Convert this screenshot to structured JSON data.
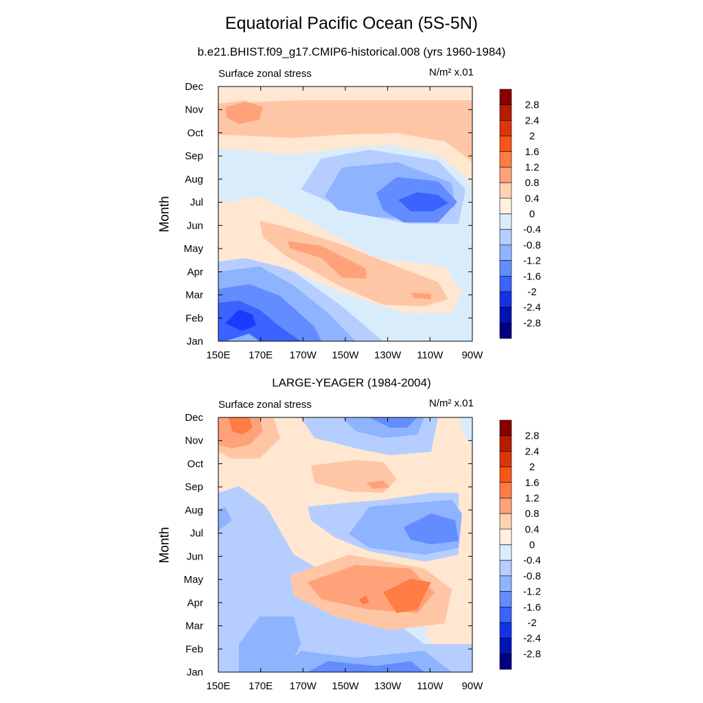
{
  "figure": {
    "title": "Equatorial Pacific Ocean (5S-5N)"
  },
  "chart_data": [
    {
      "type": "heatmap",
      "title": "b.e21.BHIST.f09_g17.CMIP6-historical.008 (yrs 1960-1984)",
      "left_label": "Surface zonal stress",
      "units": "N/m² x.01",
      "ylabel": "Month",
      "xlabel": "",
      "x_ticks": [
        "150E",
        "170E",
        "170W",
        "150W",
        "130W",
        "110W",
        "90W"
      ],
      "y_ticks": [
        "Jan",
        "Feb",
        "Mar",
        "Apr",
        "May",
        "Jun",
        "Jul",
        "Aug",
        "Sep",
        "Oct",
        "Nov",
        "Dec"
      ],
      "colorbar_levels": [
        "2.8",
        "2.4",
        "2",
        "1.6",
        "1.2",
        "0.8",
        "0.4",
        "0",
        "-0.4",
        "-0.8",
        "-1.2",
        "-1.6",
        "-2",
        "-2.4",
        "-2.8"
      ],
      "grid": false,
      "contour_features": [
        {
          "month": "Feb",
          "lon": "170E-150E",
          "value": -2.0
        },
        {
          "month": "Jan",
          "lon": "150E-170W",
          "value": -1.6
        },
        {
          "month": "Jul",
          "lon": "130W-110W",
          "value": -2.0
        },
        {
          "month": "Jul",
          "lon": "150W-100W",
          "value": -1.2
        },
        {
          "month": "Apr",
          "lon": "150W-140W",
          "value": 1.6
        },
        {
          "month": "Mar",
          "lon": "120W-110W",
          "value": 1.6
        },
        {
          "month": "Apr",
          "lon": "170E-100W",
          "value": 0.8
        },
        {
          "month": "Nov",
          "lon": "150E-170E",
          "value": 0.8
        },
        {
          "month": "Oct",
          "lon": "170E-90W",
          "value": 0.4
        }
      ]
    },
    {
      "type": "heatmap",
      "title": "LARGE-YEAGER (1984-2004)",
      "left_label": "Surface zonal stress",
      "units": "N/m² x.01",
      "ylabel": "Month",
      "xlabel": "",
      "x_ticks": [
        "150E",
        "170E",
        "170W",
        "150W",
        "130W",
        "110W",
        "90W"
      ],
      "y_ticks": [
        "Jan",
        "Feb",
        "Mar",
        "Apr",
        "May",
        "Jun",
        "Jul",
        "Aug",
        "Sep",
        "Oct",
        "Nov",
        "Dec"
      ],
      "colorbar_levels": [
        "2.8",
        "2.4",
        "2",
        "1.6",
        "1.2",
        "0.8",
        "0.4",
        "0",
        "-0.4",
        "-0.8",
        "-1.2",
        "-1.6",
        "-2",
        "-2.4",
        "-2.8"
      ],
      "grid": false,
      "contour_features": [
        {
          "month": "Dec",
          "lon": "150E-160E",
          "value": 1.6
        },
        {
          "month": "Nov",
          "lon": "150E-160E",
          "value": 1.2
        },
        {
          "month": "Apr",
          "lon": "130W-120W",
          "value": 1.2
        },
        {
          "month": "Apr",
          "lon": "170W-100W",
          "value": 0.8
        },
        {
          "month": "Mar",
          "lon": "170E-150E",
          "value": -0.8
        },
        {
          "month": "Jan",
          "lon": "170W-120W",
          "value": -1.2
        },
        {
          "month": "Jul",
          "lon": "120W-100W",
          "value": -0.8
        },
        {
          "month": "Dec",
          "lon": "160W-110W",
          "value": -0.8
        },
        {
          "month": "Sep",
          "lon": "170W-120W",
          "value": 0.4
        }
      ]
    }
  ],
  "palette": {
    "colorbar_colors": [
      "#870000",
      "#b31d00",
      "#dc3609",
      "#ff5418",
      "#ff7c45",
      "#ffa27a",
      "#ffd2b1",
      "#fff0e0",
      "#d9ecfb",
      "#b5ceff",
      "#8eb3ff",
      "#638cff",
      "#3a63ff",
      "#1433e6",
      "#0014b4",
      "#000082"
    ],
    "fill": {
      "n2": "#0014b4",
      "n16": "#1a3bff",
      "n12": "#3a63ff",
      "n08": "#638cff",
      "n04": "#8eb3ff",
      "n00": "#b5ceff",
      "z": "#d9ecfb",
      "p04": "#ffe7d2",
      "p08": "#ffc6a6",
      "p12": "#ffa27a",
      "p16": "#ff7c45",
      "p20": "#ff5418"
    }
  }
}
